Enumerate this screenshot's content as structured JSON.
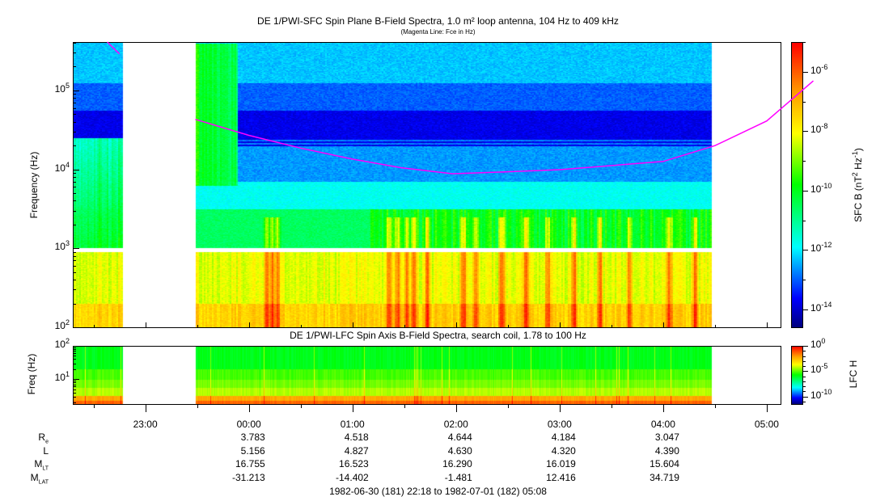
{
  "chart_data": [
    {
      "type": "heatmap",
      "title": "DE 1/PWI-SFC  Spin Plane B-Field Spectra, 1.0 m² loop antenna, 104 Hz to 409 kHz",
      "subtitle": "(Magenta Line: Fce in Hz)",
      "ylabel": "Frequency (Hz)",
      "yscale": "log",
      "ylim": [
        100,
        409000
      ],
      "ytick_labels": [
        {
          "base": "10",
          "exp": "2",
          "value": 100
        },
        {
          "base": "10",
          "exp": "3",
          "value": 1000
        },
        {
          "base": "10",
          "exp": "4",
          "value": 10000
        },
        {
          "base": "10",
          "exp": "5",
          "value": 100000
        }
      ],
      "xlim_minutes_from_start": [
        0,
        410
      ],
      "data_gaps_minutes": [
        [
          29,
          71
        ],
        [
          370,
          410
        ]
      ],
      "frequency_gap_hz": [
        900,
        1030
      ],
      "colorbar": {
        "label": "SFC B (nT² Hz⁻¹)",
        "label_parts": [
          "SFC B (nT",
          "2",
          " Hz",
          "-1",
          ")"
        ],
        "scale": "log",
        "range_log10": [
          -14.6,
          -5.0
        ],
        "tick_labels": [
          {
            "base": "10",
            "exp": "-6",
            "value": -6
          },
          {
            "base": "10",
            "exp": "-8",
            "value": -8
          },
          {
            "base": "10",
            "exp": "-10",
            "value": -10
          },
          {
            "base": "10",
            "exp": "-12",
            "value": -12
          },
          {
            "base": "10",
            "exp": "-14",
            "value": -14
          }
        ]
      },
      "fce_line": {
        "color": "#ff00ff",
        "segments": [
          [
            [
              20,
              410000
            ],
            [
              27,
              290000
            ]
          ],
          [
            [
              71,
              43000
            ],
            [
              102,
              27000
            ],
            [
              132,
              18600
            ],
            [
              162,
              13500
            ],
            [
              190,
              10500
            ],
            [
              220,
              8800
            ],
            [
              250,
              9300
            ],
            [
              282,
              9900
            ],
            [
              282,
              9900
            ],
            [
              342,
              12600
            ],
            [
              372,
              20000
            ],
            [
              402,
              41000
            ],
            [
              429,
              132000
            ]
          ]
        ]
      },
      "bursts_minutes": [
        112,
        115,
        118,
        183,
        188,
        193,
        197,
        205,
        226,
        233,
        248,
        262,
        275,
        290,
        305,
        322,
        345,
        360
      ]
    },
    {
      "type": "heatmap",
      "title": "DE 1/PWI-LFC  Spin Axis B-Field Spectra, search coil, 1.78 to 100 Hz",
      "ylabel": "Freq (Hz)",
      "yscale": "log",
      "ylim": [
        1.78,
        100
      ],
      "ytick_labels": [
        {
          "base": "10",
          "exp": "1",
          "value": 10
        },
        {
          "base": "10",
          "exp": "2",
          "value": 100
        }
      ],
      "data_gaps_minutes": [
        [
          29,
          71
        ],
        [
          370,
          410
        ]
      ],
      "colorbar": {
        "label": "LFC H",
        "scale": "log",
        "range_log10": [
          -11.5,
          0
        ],
        "tick_labels": [
          {
            "base": "10",
            "exp": "0",
            "value": 0
          },
          {
            "base": "10",
            "exp": "-5",
            "value": -5
          },
          {
            "base": "10",
            "exp": "-10",
            "value": -10
          }
        ]
      }
    }
  ],
  "xaxis": {
    "start": "22:18",
    "tick_labels": [
      {
        "label": "23:00",
        "minute": 42
      },
      {
        "label": "00:00",
        "minute": 102
      },
      {
        "label": "01:00",
        "minute": 162
      },
      {
        "label": "02:00",
        "minute": 222
      },
      {
        "label": "03:00",
        "minute": 282
      },
      {
        "label": "04:00",
        "minute": 342
      },
      {
        "label": "05:00",
        "minute": 402
      }
    ]
  },
  "ephemeris": [
    {
      "name": "R",
      "sub": "e",
      "values": [
        "",
        "3.783",
        "4.518",
        "4.644",
        "4.184",
        "3.047",
        ""
      ]
    },
    {
      "name": "L",
      "sub": "",
      "values": [
        "",
        "5.156",
        "4.827",
        "4.630",
        "4.320",
        "4.390",
        ""
      ]
    },
    {
      "name": "M",
      "sub": "LT",
      "values": [
        "",
        "16.755",
        "16.523",
        "16.290",
        "16.019",
        "15.604",
        ""
      ]
    },
    {
      "name": "M",
      "sub": "LAT",
      "values": [
        "",
        "-31.213",
        "-14.402",
        "-1.481",
        "12.416",
        "34.719",
        ""
      ]
    }
  ],
  "time_range": "1982-06-30 (181) 22:18 to 1982-07-01 (182) 05:08"
}
